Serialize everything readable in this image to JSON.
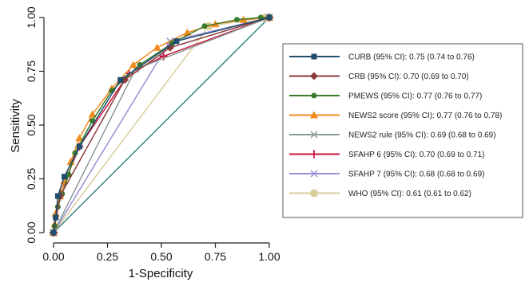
{
  "chart_data": {
    "type": "line",
    "title": "",
    "xlabel": "1-Specificity",
    "ylabel": "Sensitivity",
    "xlim": [
      0,
      1
    ],
    "ylim": [
      0,
      1
    ],
    "x_ticks": [
      "0.00",
      "0.25",
      "0.50",
      "0.75",
      "1.00"
    ],
    "y_ticks": [
      "0.00",
      "0.25",
      "0.50",
      "0.75",
      "1.00"
    ],
    "grid": false,
    "legend_position": "right",
    "reference_line": {
      "x": [
        0,
        1
      ],
      "y": [
        0,
        1
      ],
      "color": "#2f7f7a"
    },
    "series": [
      {
        "name": "CURB (95% CI): 0.75 (0.74 to 0.76)",
        "color": "#1f4e6e",
        "marker": "square",
        "x": [
          0,
          0.01,
          0.02,
          0.05,
          0.12,
          0.31,
          0.57,
          1
        ],
        "y": [
          0,
          0.07,
          0.17,
          0.26,
          0.4,
          0.71,
          0.89,
          1
        ]
      },
      {
        "name": "CRB (95% CI): 0.70 (0.69 to 0.70)",
        "color": "#8b3a3a",
        "marker": "diamond",
        "x": [
          0,
          0.03,
          0.33,
          0.54,
          1
        ],
        "y": [
          0,
          0.17,
          0.71,
          0.86,
          1
        ]
      },
      {
        "name": "PMEWS (95% CI): 0.77 (0.76 to 0.77)",
        "color": "#3b7a2a",
        "marker": "circle",
        "x": [
          0,
          0.005,
          0.01,
          0.02,
          0.04,
          0.07,
          0.1,
          0.18,
          0.27,
          0.4,
          0.55,
          0.7,
          0.85,
          0.96,
          1
        ],
        "y": [
          0,
          0.03,
          0.07,
          0.12,
          0.18,
          0.27,
          0.37,
          0.52,
          0.66,
          0.78,
          0.88,
          0.96,
          0.99,
          1.0,
          1
        ]
      },
      {
        "name": "NEWS2 score (95% CI): 0.77 (0.76 to 0.78)",
        "color": "#f08a1c",
        "marker": "triangle",
        "x": [
          0,
          0.005,
          0.01,
          0.03,
          0.05,
          0.08,
          0.12,
          0.18,
          0.27,
          0.37,
          0.48,
          0.62,
          0.75,
          0.88,
          1
        ],
        "y": [
          0,
          0.04,
          0.09,
          0.17,
          0.24,
          0.33,
          0.44,
          0.55,
          0.67,
          0.78,
          0.86,
          0.93,
          0.97,
          0.99,
          1
        ]
      },
      {
        "name": "NEWS2 rule (95% CI): 0.69 (0.68 to 0.69)",
        "color": "#8a9a96",
        "marker": "x",
        "x": [
          0,
          0.38,
          1
        ],
        "y": [
          0,
          0.76,
          1
        ]
      },
      {
        "name": "SFAHP 6 (95% CI): 0.70 (0.69 to 0.71)",
        "color": "#c8143c",
        "marker": "plus",
        "x": [
          0,
          0.03,
          0.12,
          0.35,
          0.51,
          1
        ],
        "y": [
          0,
          0.18,
          0.4,
          0.74,
          0.82,
          1
        ]
      },
      {
        "name": "SFAHP 7 (95% CI): 0.68 (0.68 to 0.69)",
        "color": "#9a8fd6",
        "marker": "x",
        "x": [
          0,
          0.54,
          1
        ],
        "y": [
          0,
          0.89,
          1
        ]
      },
      {
        "name": "WHO (95% CI): 0.61 (0.61 to 0.62)",
        "color": "#d9cd9c",
        "marker": "circle-large",
        "x": [
          0,
          0.72,
          0.98,
          1
        ],
        "y": [
          0,
          0.96,
          1.0,
          1
        ]
      }
    ]
  }
}
